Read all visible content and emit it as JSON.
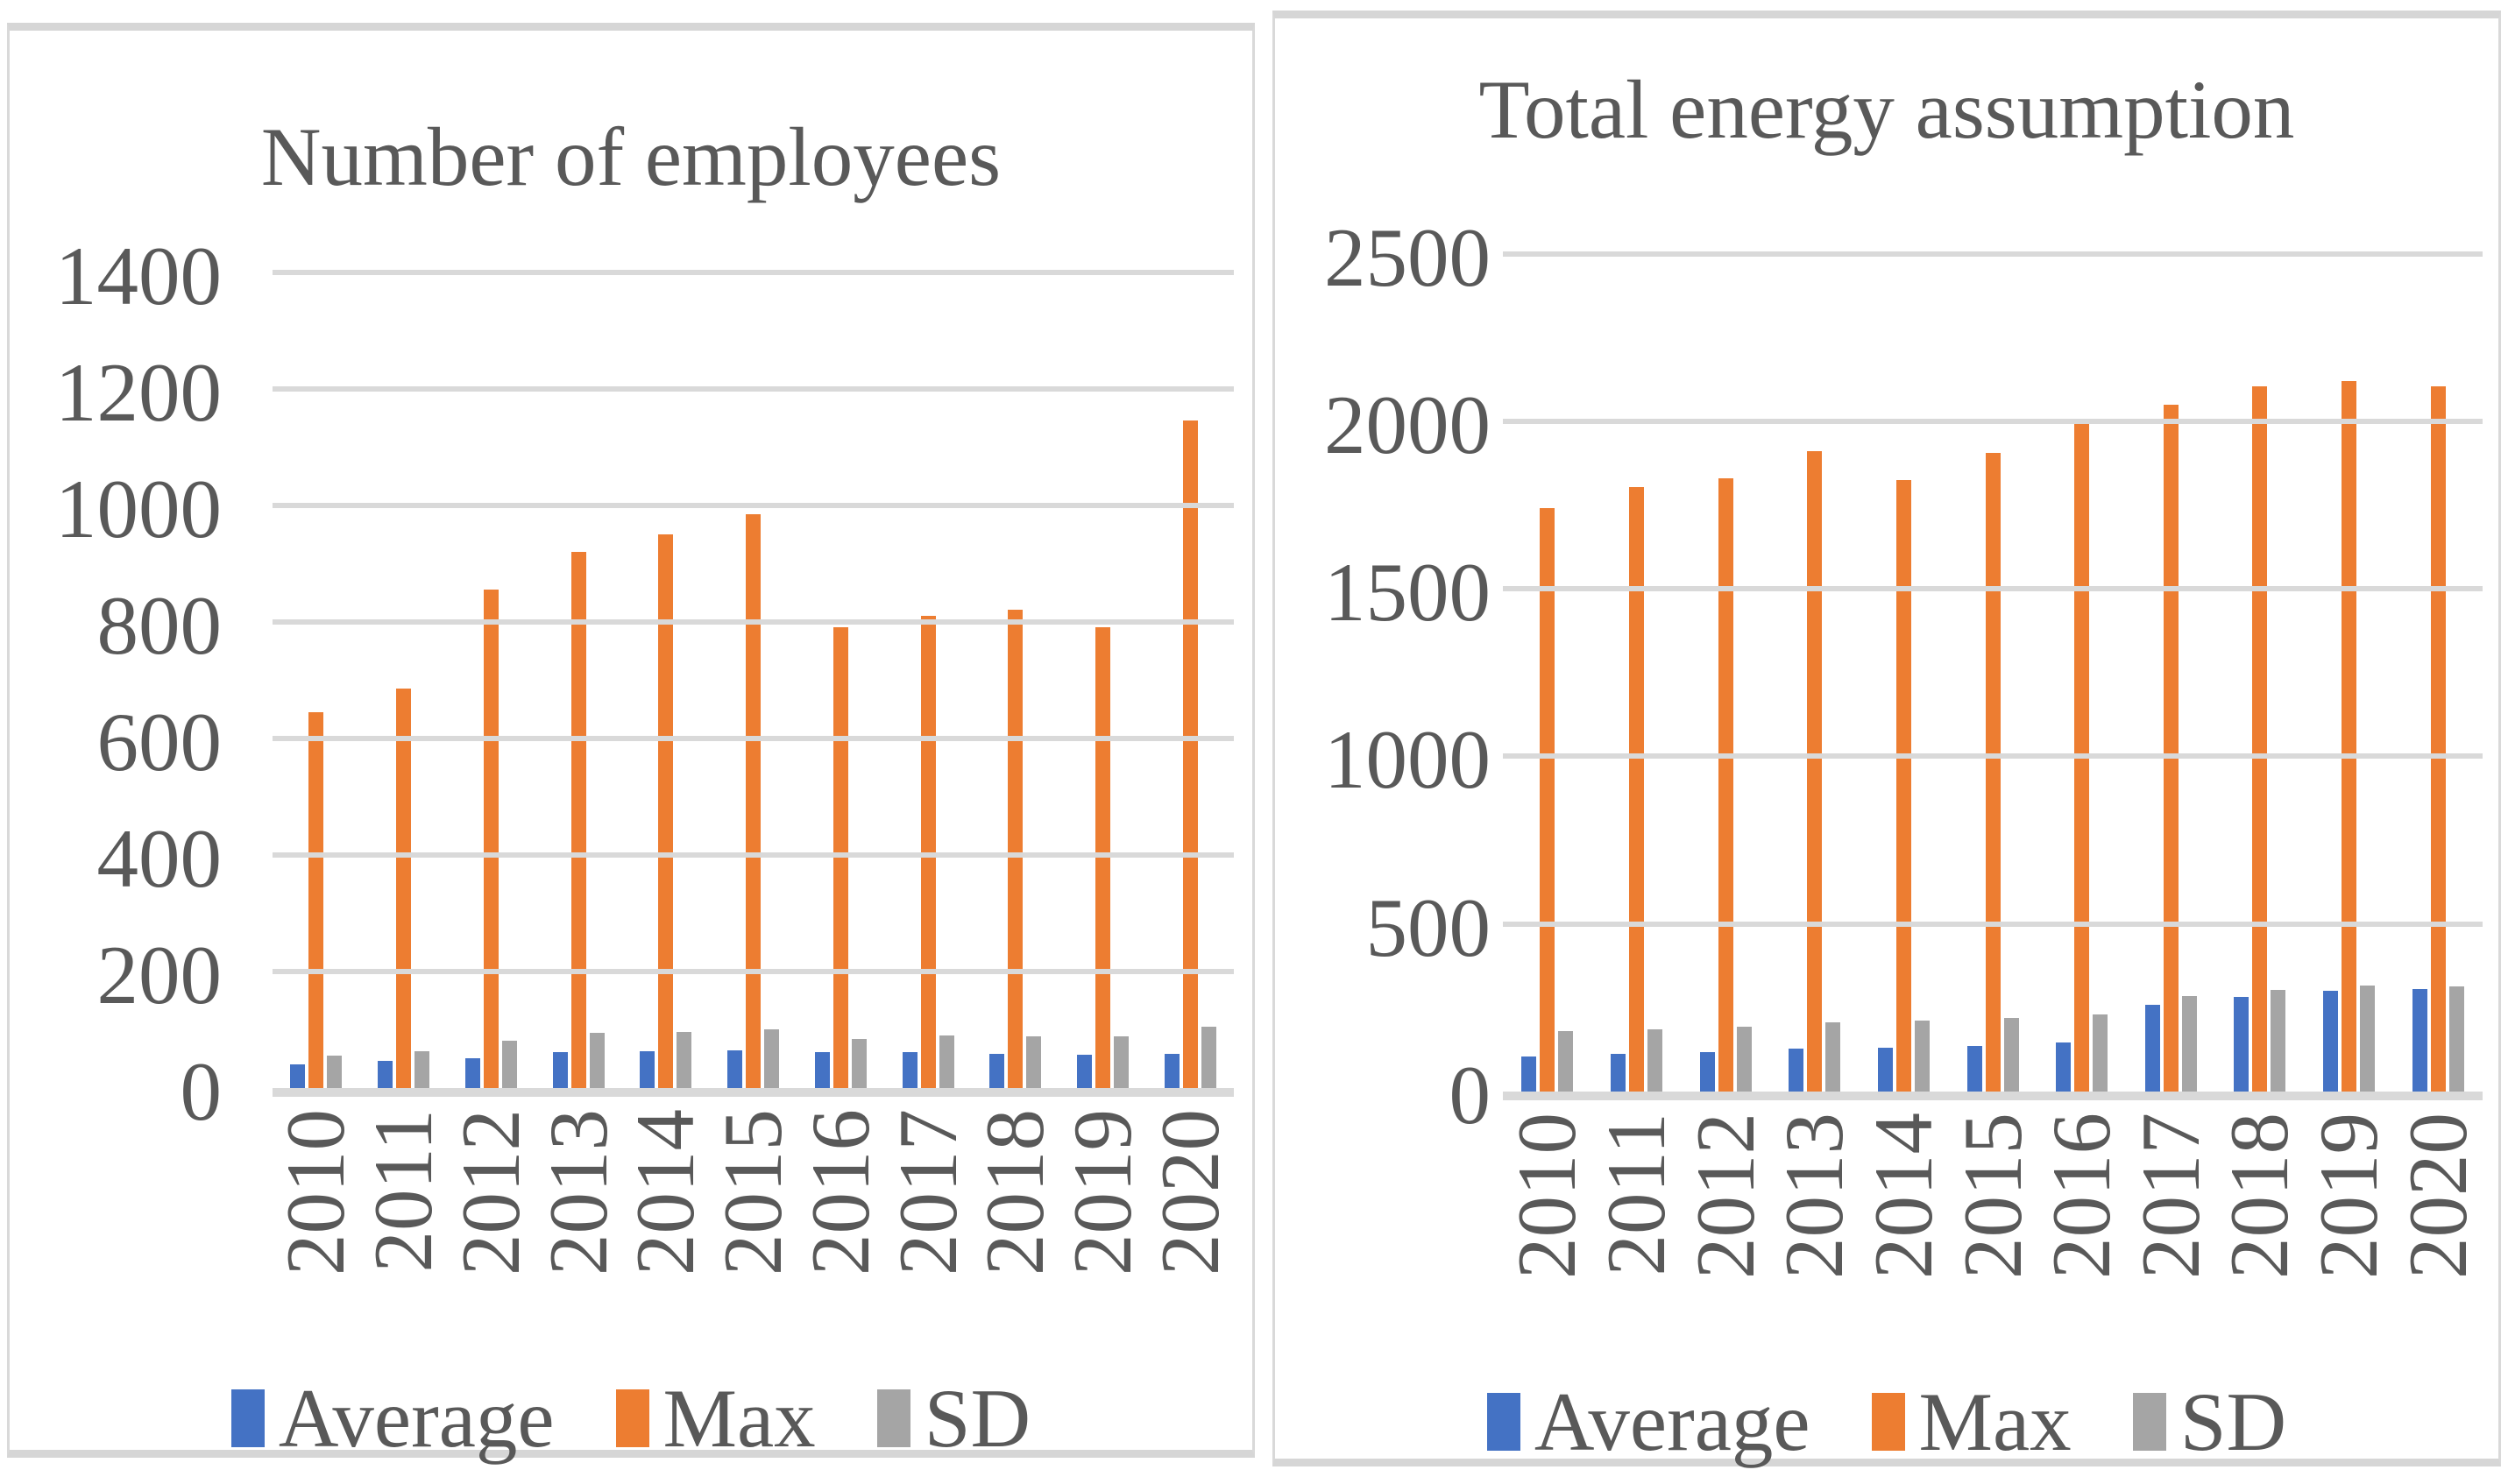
{
  "colors": {
    "average": "#4472C4",
    "max": "#ED7D31",
    "sd": "#A5A5A5",
    "axis_text": "#595959",
    "gridline": "#D9D9D9",
    "panel_border": "#D9D9D9"
  },
  "chart_data": [
    {
      "type": "bar",
      "title": "Number of employees",
      "categories": [
        "2010",
        "2011",
        "2012",
        "2013",
        "2014",
        "2015",
        "2016",
        "2017",
        "2018",
        "2019",
        "2020"
      ],
      "series": [
        {
          "name": "Average",
          "key": "average",
          "values": [
            41,
            46,
            51,
            62,
            63,
            64,
            61,
            61,
            59,
            57,
            58
          ]
        },
        {
          "name": "Max",
          "key": "max",
          "values": [
            645,
            685,
            855,
            920,
            950,
            985,
            790,
            810,
            820,
            790,
            1145
          ]
        },
        {
          "name": "SD",
          "key": "sd",
          "values": [
            56,
            63,
            81,
            95,
            96,
            101,
            84,
            90,
            88,
            88,
            105
          ]
        }
      ],
      "y_ticks": [
        0,
        200,
        400,
        600,
        800,
        1000,
        1200,
        1400
      ],
      "ylim": [
        0,
        1400
      ],
      "xlabel": "",
      "ylabel": "",
      "grid": "horizontal",
      "legend_position": "bottom"
    },
    {
      "type": "bar",
      "title": "Total energy assumption",
      "categories": [
        "2010",
        "2011",
        "2012",
        "2013",
        "2014",
        "2015",
        "2016",
        "2017",
        "2018",
        "2019",
        "2020"
      ],
      "series": [
        {
          "name": "Average",
          "key": "average",
          "values": [
            105,
            113,
            118,
            127,
            131,
            135,
            147,
            258,
            282,
            300,
            306
          ]
        },
        {
          "name": "Max",
          "key": "max",
          "values": [
            1740,
            1805,
            1830,
            1910,
            1825,
            1905,
            2000,
            2050,
            2105,
            2120,
            2105
          ]
        },
        {
          "name": "SD",
          "key": "sd",
          "values": [
            180,
            186,
            193,
            205,
            212,
            220,
            230,
            285,
            303,
            317,
            313
          ]
        }
      ],
      "y_ticks": [
        0,
        500,
        1000,
        1500,
        2000,
        2500
      ],
      "ylim": [
        0,
        2500
      ],
      "xlabel": "",
      "ylabel": "",
      "grid": "horizontal",
      "legend_position": "bottom"
    }
  ]
}
